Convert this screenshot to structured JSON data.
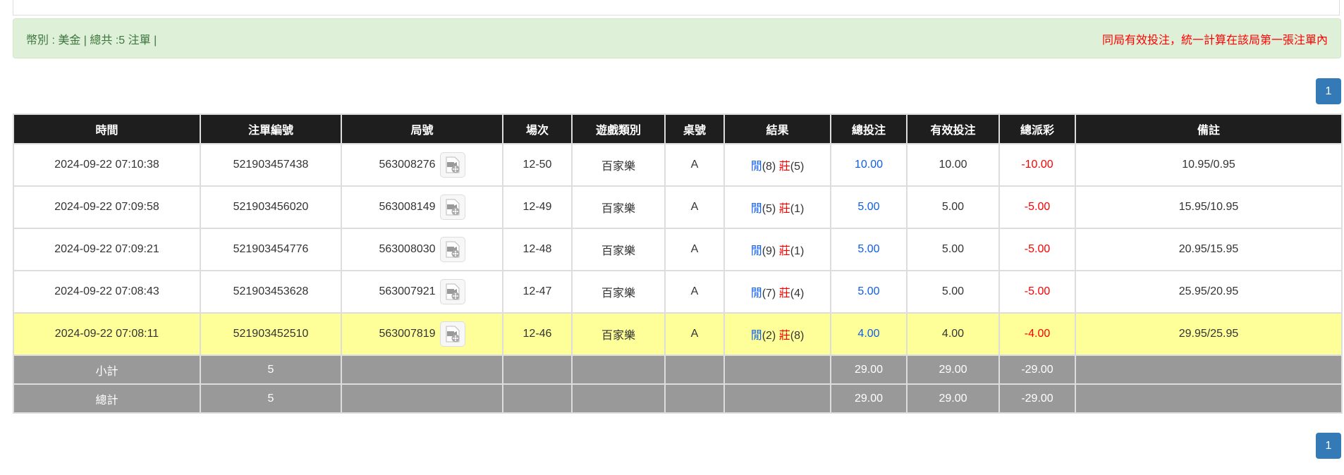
{
  "summary": {
    "left": "幣別 : 美金 | 總共 :5 注單 |",
    "right": "同局有效投注，統一計算在該局第一張注單內"
  },
  "pagination": {
    "current": "1"
  },
  "colors": {
    "banker": "#ff0000",
    "player": "#0f5ee8",
    "highlight": "#ffff99",
    "summary_bg": "#999999"
  },
  "table": {
    "headers": [
      "時間",
      "注單編號",
      "局號",
      "場次",
      "遊戲類別",
      "桌號",
      "結果",
      "總投注",
      "有效投注",
      "總派彩",
      "備註"
    ],
    "rows": [
      {
        "time": "2024-09-22 07:10:38",
        "bet_id": "521903457438",
        "round": "563008276",
        "shoe": "12-50",
        "game": "百家樂",
        "table": "A",
        "p_label": "閒",
        "p_val": "(8)",
        "b_label": "莊",
        "b_val": "(5)",
        "total": "10.00",
        "valid": "10.00",
        "payout": "-10.00",
        "note": "10.95/0.95",
        "highlight": false
      },
      {
        "time": "2024-09-22 07:09:58",
        "bet_id": "521903456020",
        "round": "563008149",
        "shoe": "12-49",
        "game": "百家樂",
        "table": "A",
        "p_label": "閒",
        "p_val": "(5)",
        "b_label": "莊",
        "b_val": "(1)",
        "total": "5.00",
        "valid": "5.00",
        "payout": "-5.00",
        "note": "15.95/10.95",
        "highlight": false
      },
      {
        "time": "2024-09-22 07:09:21",
        "bet_id": "521903454776",
        "round": "563008030",
        "shoe": "12-48",
        "game": "百家樂",
        "table": "A",
        "p_label": "閒",
        "p_val": "(9)",
        "b_label": "莊",
        "b_val": "(1)",
        "total": "5.00",
        "valid": "5.00",
        "payout": "-5.00",
        "note": "20.95/15.95",
        "highlight": false
      },
      {
        "time": "2024-09-22 07:08:43",
        "bet_id": "521903453628",
        "round": "563007921",
        "shoe": "12-47",
        "game": "百家樂",
        "table": "A",
        "p_label": "閒",
        "p_val": "(7)",
        "b_label": "莊",
        "b_val": "(4)",
        "total": "5.00",
        "valid": "5.00",
        "payout": "-5.00",
        "note": "25.95/20.95",
        "highlight": false
      },
      {
        "time": "2024-09-22 07:08:11",
        "bet_id": "521903452510",
        "round": "563007819",
        "shoe": "12-46",
        "game": "百家樂",
        "table": "A",
        "p_label": "閒",
        "p_val": "(2)",
        "b_label": "莊",
        "b_val": "(8)",
        "total": "4.00",
        "valid": "4.00",
        "payout": "-4.00",
        "note": "29.95/25.95",
        "highlight": true
      }
    ],
    "subtotal": {
      "label": "小計",
      "count": "5",
      "total": "29.00",
      "valid": "29.00",
      "payout": "-29.00"
    },
    "grand_total": {
      "label": "總計",
      "count": "5",
      "total": "29.00",
      "valid": "29.00",
      "payout": "-29.00"
    }
  }
}
